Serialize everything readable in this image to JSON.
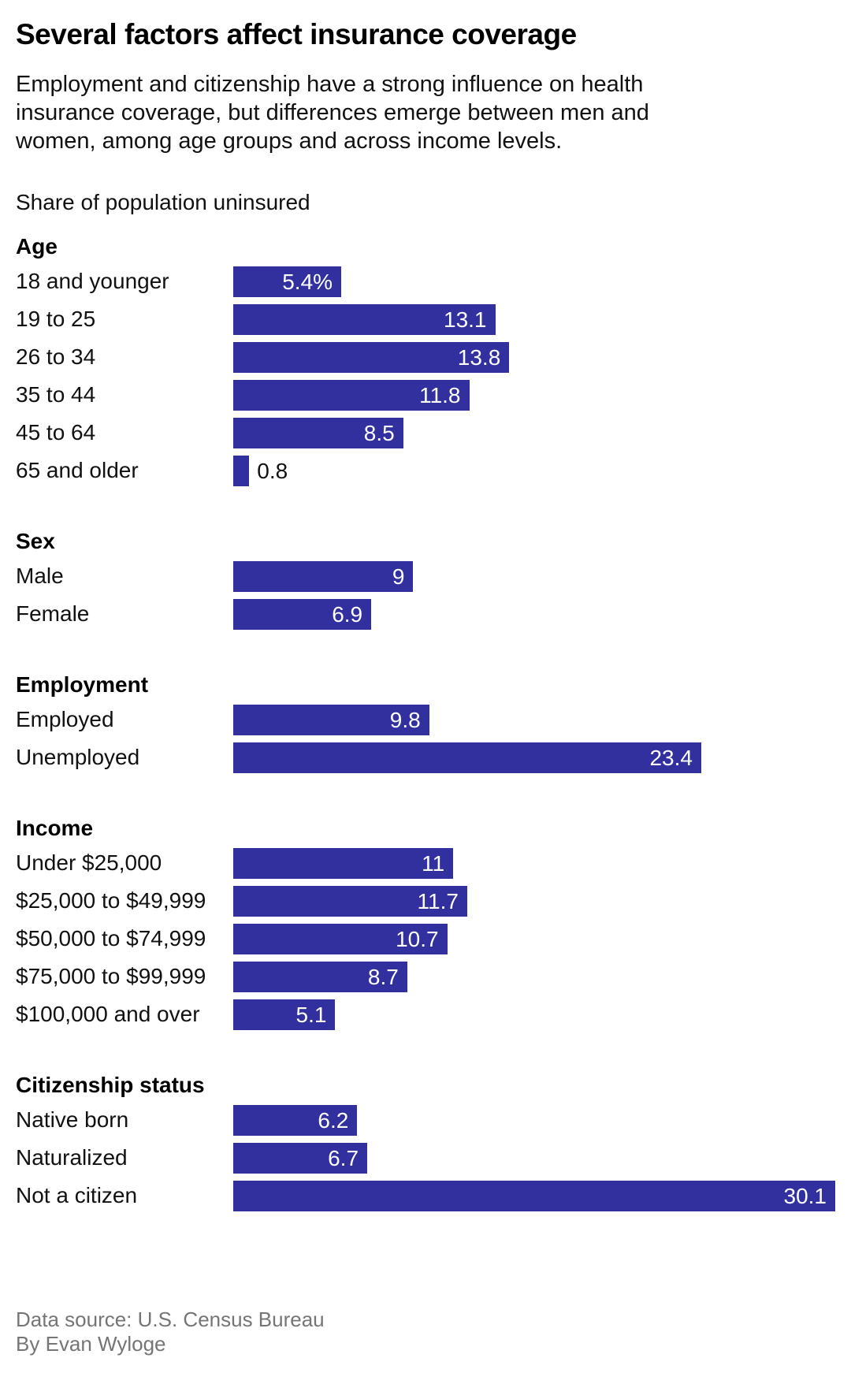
{
  "title": "Several factors affect insurance coverage",
  "subtitle": "Employment and citizenship have a strong influence on health insurance coverage, but differences emerge between men and women, among age groups and across income levels.",
  "axis_label": "Share of population uninsured",
  "footer": {
    "source": "Data source: U.S. Census Bureau",
    "byline": "By Evan Wyloge"
  },
  "colors": {
    "bar": "#322F9F",
    "value_text_inside": "#ffffff",
    "value_text_outside": "#111111",
    "muted_text": "#757575"
  },
  "chart_data": {
    "type": "bar",
    "orientation": "horizontal",
    "unit": "percent",
    "xlim": [
      0,
      30.1
    ],
    "grid": false,
    "value_labels": "inside-end",
    "sections": [
      {
        "label": "Age",
        "rows": [
          {
            "label": "18 and younger",
            "value": 5.4,
            "display": "5.4%"
          },
          {
            "label": "19 to 25",
            "value": 13.1,
            "display": "13.1"
          },
          {
            "label": "26 to 34",
            "value": 13.8,
            "display": "13.8"
          },
          {
            "label": "35 to 44",
            "value": 11.8,
            "display": "11.8"
          },
          {
            "label": "45 to 64",
            "value": 8.5,
            "display": "8.5"
          },
          {
            "label": "65 and older",
            "value": 0.8,
            "display": "0.8",
            "label_outside": true
          }
        ]
      },
      {
        "label": "Sex",
        "rows": [
          {
            "label": "Male",
            "value": 9,
            "display": "9"
          },
          {
            "label": "Female",
            "value": 6.9,
            "display": "6.9"
          }
        ]
      },
      {
        "label": "Employment",
        "rows": [
          {
            "label": "Employed",
            "value": 9.8,
            "display": "9.8"
          },
          {
            "label": "Unemployed",
            "value": 23.4,
            "display": "23.4"
          }
        ]
      },
      {
        "label": "Income",
        "rows": [
          {
            "label": "Under $25,000",
            "value": 11,
            "display": "11"
          },
          {
            "label": "$25,000 to $49,999",
            "value": 11.7,
            "display": "11.7"
          },
          {
            "label": "$50,000 to $74,999",
            "value": 10.7,
            "display": "10.7"
          },
          {
            "label": "$75,000 to $99,999",
            "value": 8.7,
            "display": "8.7"
          },
          {
            "label": "$100,000 and over",
            "value": 5.1,
            "display": "5.1"
          }
        ]
      },
      {
        "label": "Citizenship status",
        "rows": [
          {
            "label": "Native born",
            "value": 6.2,
            "display": "6.2"
          },
          {
            "label": "Naturalized",
            "value": 6.7,
            "display": "6.7"
          },
          {
            "label": "Not a citizen",
            "value": 30.1,
            "display": "30.1"
          }
        ]
      }
    ]
  }
}
